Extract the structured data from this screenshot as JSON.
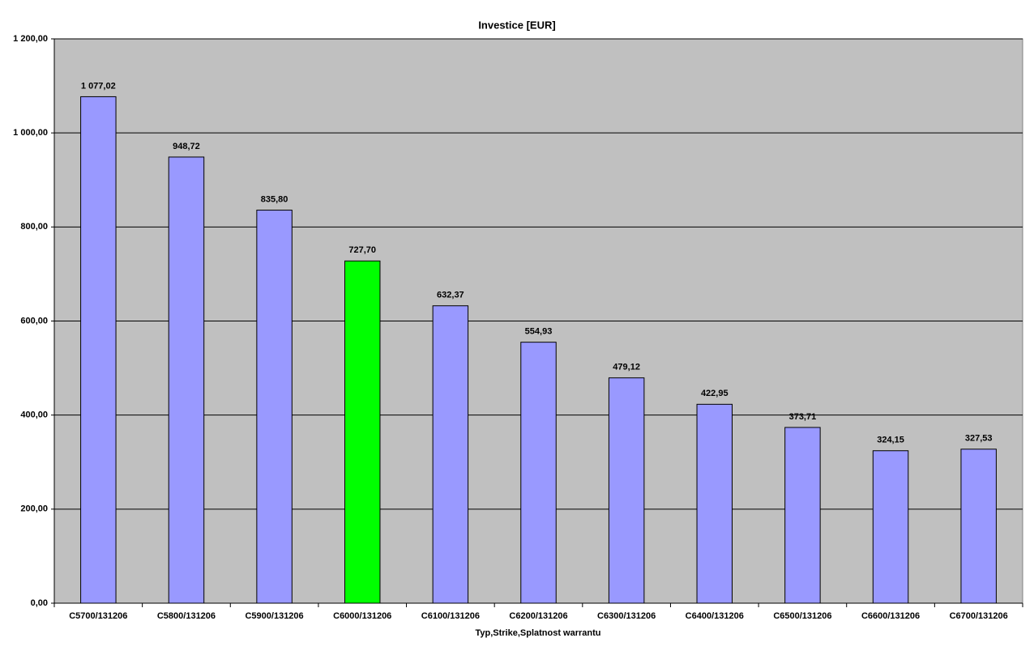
{
  "chart_data": {
    "type": "bar",
    "title": "Investice [EUR]",
    "x_label": "Typ,Strike,Splatnost warrantu",
    "categories": [
      "C5700/131206",
      "C5800/131206",
      "C5900/131206",
      "C6000/131206",
      "C6100/131206",
      "C6200/131206",
      "C6300/131206",
      "C6400/131206",
      "C6500/131206",
      "C6600/131206",
      "C6700/131206"
    ],
    "values": [
      1077.02,
      948.72,
      835.8,
      727.7,
      632.37,
      554.93,
      479.12,
      422.95,
      373.71,
      324.15,
      327.53
    ],
    "value_labels": [
      "1 077,02",
      "948,72",
      "835,80",
      "727,70",
      "632,37",
      "554,93",
      "479,12",
      "422,95",
      "373,71",
      "324,15",
      "327,53"
    ],
    "colors": [
      "#9999ff",
      "#9999ff",
      "#9999ff",
      "#00ff00",
      "#9999ff",
      "#9999ff",
      "#9999ff",
      "#9999ff",
      "#9999ff",
      "#9999ff",
      "#9999ff"
    ],
    "ylim": [
      0,
      1200
    ],
    "yticks": [
      {
        "value": 0,
        "label": "0,00"
      },
      {
        "value": 200,
        "label": "200,00"
      },
      {
        "value": 400,
        "label": "400,00"
      },
      {
        "value": 600,
        "label": "600,00"
      },
      {
        "value": 800,
        "label": "800,00"
      },
      {
        "value": 1000,
        "label": "1 000,00"
      },
      {
        "value": 1200,
        "label": "1 200,00"
      }
    ],
    "grid": true
  }
}
